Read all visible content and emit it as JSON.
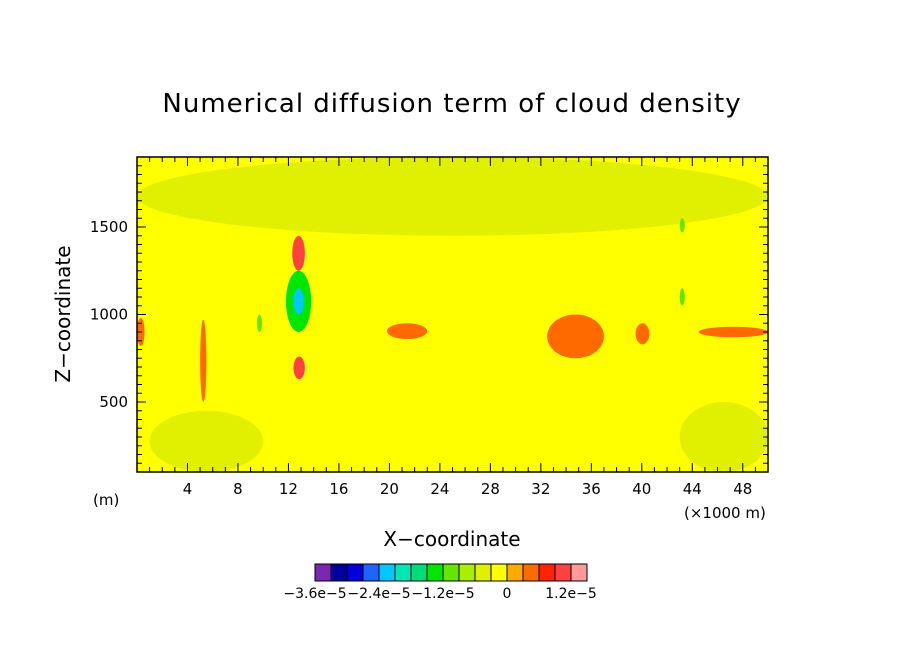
{
  "chart_data": {
    "type": "heatmap",
    "title": "Numerical diffusion term of cloud density",
    "xlabel": "X−coordinate",
    "ylabel": "Z−coordinate",
    "x_unit_left": "(m)",
    "x_unit_right": "(×1000 m)",
    "xlim": [
      0,
      50
    ],
    "ylim": [
      100,
      1900
    ],
    "x_ticks": [
      4,
      8,
      12,
      16,
      20,
      24,
      28,
      32,
      36,
      40,
      44,
      48
    ],
    "y_ticks": [
      500,
      1000,
      1500
    ],
    "colorbar": {
      "levels": [
        -3.6e-05,
        -3.3e-05,
        -3e-05,
        -2.7e-05,
        -2.4e-05,
        -2.1e-05,
        -1.8e-05,
        -1.5e-05,
        -1.2e-05,
        -9e-06,
        -6e-06,
        -3e-06,
        0,
        3e-06,
        6e-06,
        9e-06,
        1.2e-05,
        1.5e-05
      ],
      "colors": [
        "#7d26b4",
        "#0000a0",
        "#0000dc",
        "#1e64ff",
        "#00c8ff",
        "#00e6b4",
        "#00dc78",
        "#00e600",
        "#64e600",
        "#aaee00",
        "#e0f000",
        "#ffff00",
        "#ffaa00",
        "#ff6a00",
        "#ff2400",
        "#ff4040",
        "#ff9a9a"
      ],
      "tick_labels": [
        "−3.6e−5",
        "−2.4e−5",
        "−1.2e−5",
        "0",
        "1.2e−5"
      ],
      "tick_values": [
        -3.6e-05,
        -2.4e-05,
        -1.2e-05,
        0,
        1.2e-05
      ]
    },
    "background_value": -3e-06,
    "features": [
      {
        "note": "upper band",
        "x": [
          0,
          50
        ],
        "z": [
          1450,
          1900
        ],
        "value": -6e-06
      },
      {
        "note": "lower band",
        "x": [
          1,
          10
        ],
        "z": [
          100,
          450
        ],
        "value": -6e-06
      },
      {
        "note": "lower band",
        "x": [
          43,
          50
        ],
        "z": [
          100,
          500
        ],
        "value": -6e-06
      },
      {
        "note": "mid column",
        "x": [
          11.8,
          13.8
        ],
        "z": [
          900,
          1250
        ],
        "value": -1.5e-05
      },
      {
        "note": "mid core",
        "x": [
          12.4,
          13.2
        ],
        "z": [
          1000,
          1150
        ],
        "value": -2.4e-05
      },
      {
        "note": "upper positive",
        "x": [
          12.3,
          13.3
        ],
        "z": [
          1250,
          1450
        ],
        "value": 9e-06
      },
      {
        "note": "lower positive",
        "x": [
          12.4,
          13.3
        ],
        "z": [
          630,
          760
        ],
        "value": 9e-06
      },
      {
        "note": "band at 900",
        "x": [
          19.8,
          23
        ],
        "z": [
          860,
          950
        ],
        "value": 3e-06
      },
      {
        "note": "band at 900",
        "x": [
          44.5,
          50
        ],
        "z": [
          870,
          930
        ],
        "value": 3e-06
      },
      {
        "note": "band at 900",
        "x": [
          32.5,
          37
        ],
        "z": [
          750,
          1000
        ],
        "value": 3e-06
      },
      {
        "note": "band at 900",
        "x": [
          39.5,
          40.6
        ],
        "z": [
          830,
          950
        ],
        "value": 3e-06
      },
      {
        "note": "band at 900",
        "x": [
          0,
          0.6
        ],
        "z": [
          820,
          980
        ],
        "value": 3e-06
      },
      {
        "note": "column",
        "x": [
          5,
          5.5
        ],
        "z": [
          500,
          970
        ],
        "value": 3e-06
      },
      {
        "note": "column",
        "x": [
          9.5,
          9.9
        ],
        "z": [
          900,
          1000
        ],
        "value": -1.2e-05
      },
      {
        "note": "column",
        "x": [
          43,
          43.4
        ],
        "z": [
          1050,
          1150
        ],
        "value": -1.2e-05
      },
      {
        "note": "column",
        "x": [
          43,
          43.4
        ],
        "z": [
          1470,
          1550
        ],
        "value": -1.2e-05
      }
    ]
  }
}
